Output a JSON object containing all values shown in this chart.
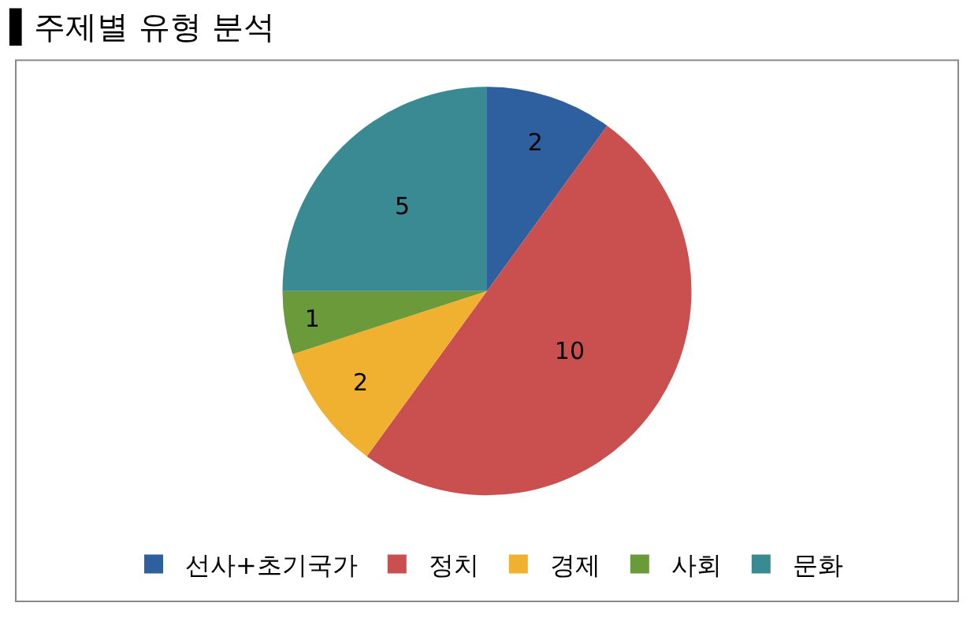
{
  "chart_data": {
    "type": "pie",
    "title": "▌주제별 유형 분석",
    "categories": [
      "선사+초기국가",
      "정치",
      "경제",
      "사회",
      "문화"
    ],
    "values": [
      2,
      10,
      2,
      1,
      5
    ],
    "colors": [
      "#2e5f9e",
      "#c9504f",
      "#f0b130",
      "#6a9a3a",
      "#3a8a94"
    ],
    "data_labels": true,
    "legend": "bottom"
  }
}
